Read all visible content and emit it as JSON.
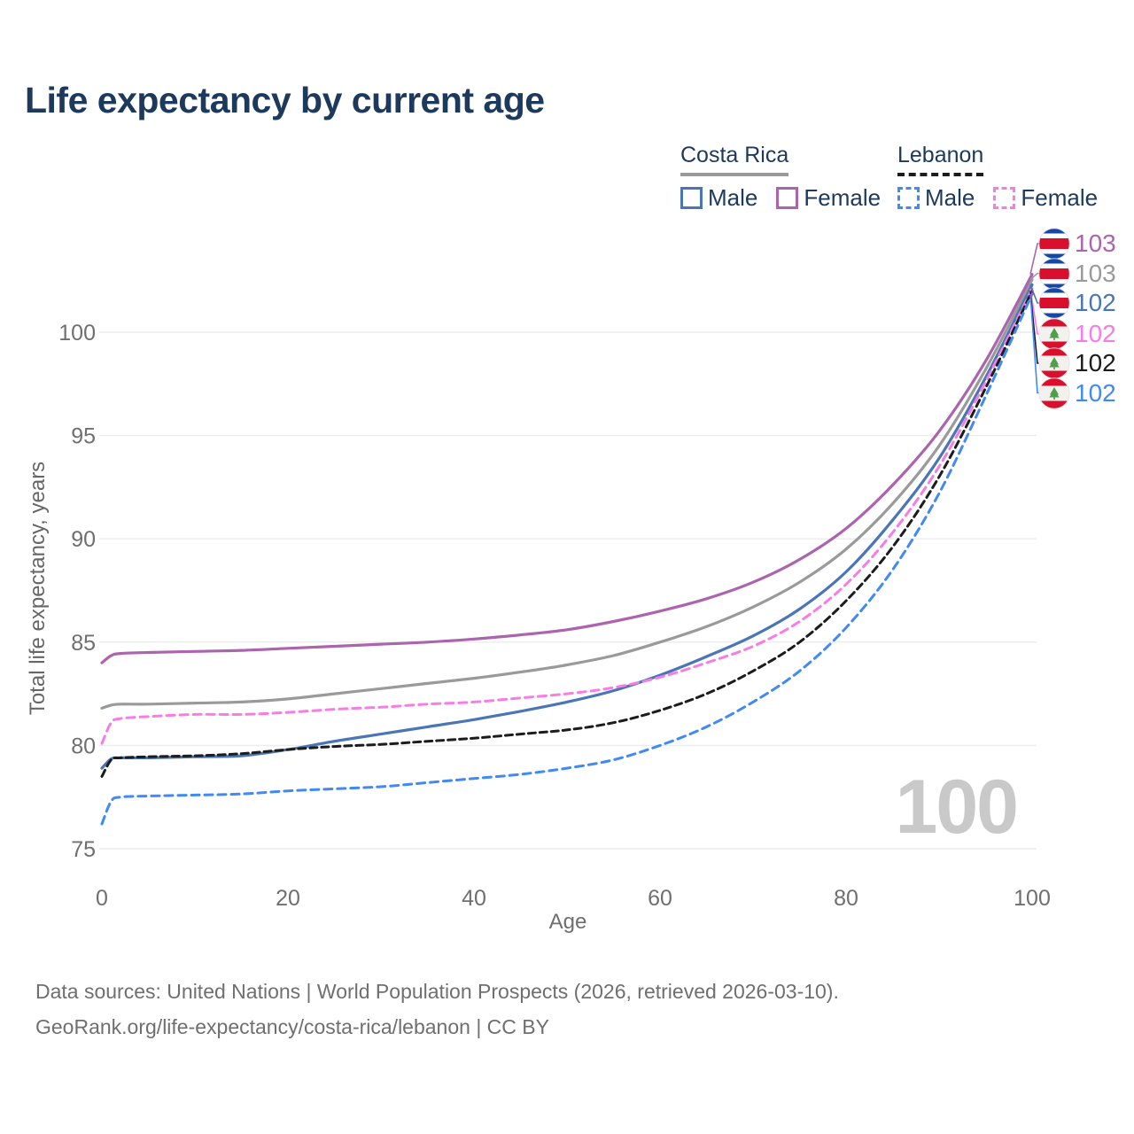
{
  "title": "Life expectancy by current age",
  "watermark": "100",
  "legend": {
    "groups": [
      {
        "label": "Costa Rica",
        "line_style": "solid",
        "line_color": "#9a9a9a",
        "items": [
          {
            "label": "Male",
            "color": "#4a76b5"
          },
          {
            "label": "Female",
            "color": "#ab64ad"
          }
        ]
      },
      {
        "label": "Lebanon",
        "line_style": "dashed",
        "line_color": "#1c1c1c",
        "items": [
          {
            "label": "Male",
            "color": "#4189f5"
          },
          {
            "label": "Female",
            "color": "#f97ce5"
          }
        ]
      }
    ]
  },
  "chart_data": {
    "type": "line",
    "title": "Life expectancy by current age",
    "xlabel": "Age",
    "ylabel": "Total life expectancy, years",
    "xlim": [
      0,
      100
    ],
    "ylim": [
      75,
      103.5
    ],
    "x_ticks": [
      0,
      20,
      40,
      60,
      80,
      100
    ],
    "y_ticks": [
      75,
      80,
      85,
      90,
      95,
      100
    ],
    "grid": "horizontal",
    "ages": [
      0,
      1,
      2,
      5,
      10,
      15,
      20,
      25,
      30,
      35,
      40,
      45,
      50,
      55,
      60,
      65,
      70,
      75,
      80,
      85,
      90,
      95,
      100
    ],
    "series": [
      {
        "name": "Costa Rica",
        "color": "#9a9a9a",
        "dash": false,
        "values": [
          81.8,
          81.95,
          82.0,
          82.0,
          82.05,
          82.1,
          82.25,
          82.5,
          82.75,
          83.0,
          83.25,
          83.55,
          83.9,
          84.35,
          85.0,
          85.75,
          86.7,
          87.9,
          89.5,
          91.7,
          94.5,
          98.2,
          102.55
        ]
      },
      {
        "name": "Costa Rica Female",
        "color": "#ab64ad",
        "dash": false,
        "values": [
          84.0,
          84.35,
          84.45,
          84.5,
          84.55,
          84.6,
          84.7,
          84.8,
          84.9,
          85.0,
          85.15,
          85.35,
          85.6,
          86.0,
          86.5,
          87.1,
          87.9,
          89.0,
          90.5,
          92.6,
          95.2,
          98.6,
          102.8
        ]
      },
      {
        "name": "Costa Rica Male",
        "color": "#4a76b5",
        "dash": false,
        "values": [
          78.9,
          79.35,
          79.4,
          79.4,
          79.45,
          79.5,
          79.8,
          80.2,
          80.55,
          80.9,
          81.25,
          81.65,
          82.1,
          82.65,
          83.4,
          84.3,
          85.3,
          86.6,
          88.4,
          90.9,
          93.9,
          97.8,
          102.3
        ]
      },
      {
        "name": "Lebanon Female",
        "color": "#f97ce5",
        "dash": true,
        "values": [
          80.1,
          81.1,
          81.3,
          81.4,
          81.5,
          81.5,
          81.6,
          81.75,
          81.85,
          82.0,
          82.1,
          82.3,
          82.5,
          82.8,
          83.3,
          84.0,
          84.8,
          86.0,
          87.8,
          90.3,
          93.5,
          97.6,
          102.1
        ]
      },
      {
        "name": "Lebanon",
        "color": "#1c1c1c",
        "dash": true,
        "values": [
          78.5,
          79.3,
          79.4,
          79.45,
          79.5,
          79.6,
          79.8,
          79.95,
          80.05,
          80.2,
          80.35,
          80.55,
          80.75,
          81.1,
          81.7,
          82.5,
          83.6,
          85.0,
          87.0,
          89.6,
          93.0,
          97.3,
          102.0
        ]
      },
      {
        "name": "Lebanon Male",
        "color": "#4189f5",
        "dash": true,
        "values": [
          76.2,
          77.3,
          77.5,
          77.55,
          77.6,
          77.65,
          77.8,
          77.9,
          78.0,
          78.2,
          78.4,
          78.6,
          78.9,
          79.3,
          80.0,
          80.9,
          82.1,
          83.6,
          85.7,
          88.5,
          92.2,
          96.9,
          101.85
        ]
      }
    ],
    "end_labels": [
      {
        "name": "Costa Rica Female",
        "flag": "costa-rica",
        "value": "103",
        "color": "#ab64ad"
      },
      {
        "name": "Costa Rica",
        "flag": "costa-rica",
        "value": "103",
        "color": "#9a9a9a"
      },
      {
        "name": "Costa Rica Male",
        "flag": "costa-rica",
        "value": "102",
        "color": "#4a76b5"
      },
      {
        "name": "Lebanon Female",
        "flag": "lebanon",
        "value": "102",
        "color": "#f97ce5"
      },
      {
        "name": "Lebanon",
        "flag": "lebanon",
        "value": "102",
        "color": "#1c1c1c"
      },
      {
        "name": "Lebanon Male",
        "flag": "lebanon",
        "value": "102",
        "color": "#4189f5"
      }
    ]
  },
  "footer": {
    "line1": "Data sources: United Nations | World Population Prospects (2026, retrieved 2026-03-10).",
    "line2": "GeoRank.org/life-expectancy/costa-rica/lebanon | CC BY"
  }
}
